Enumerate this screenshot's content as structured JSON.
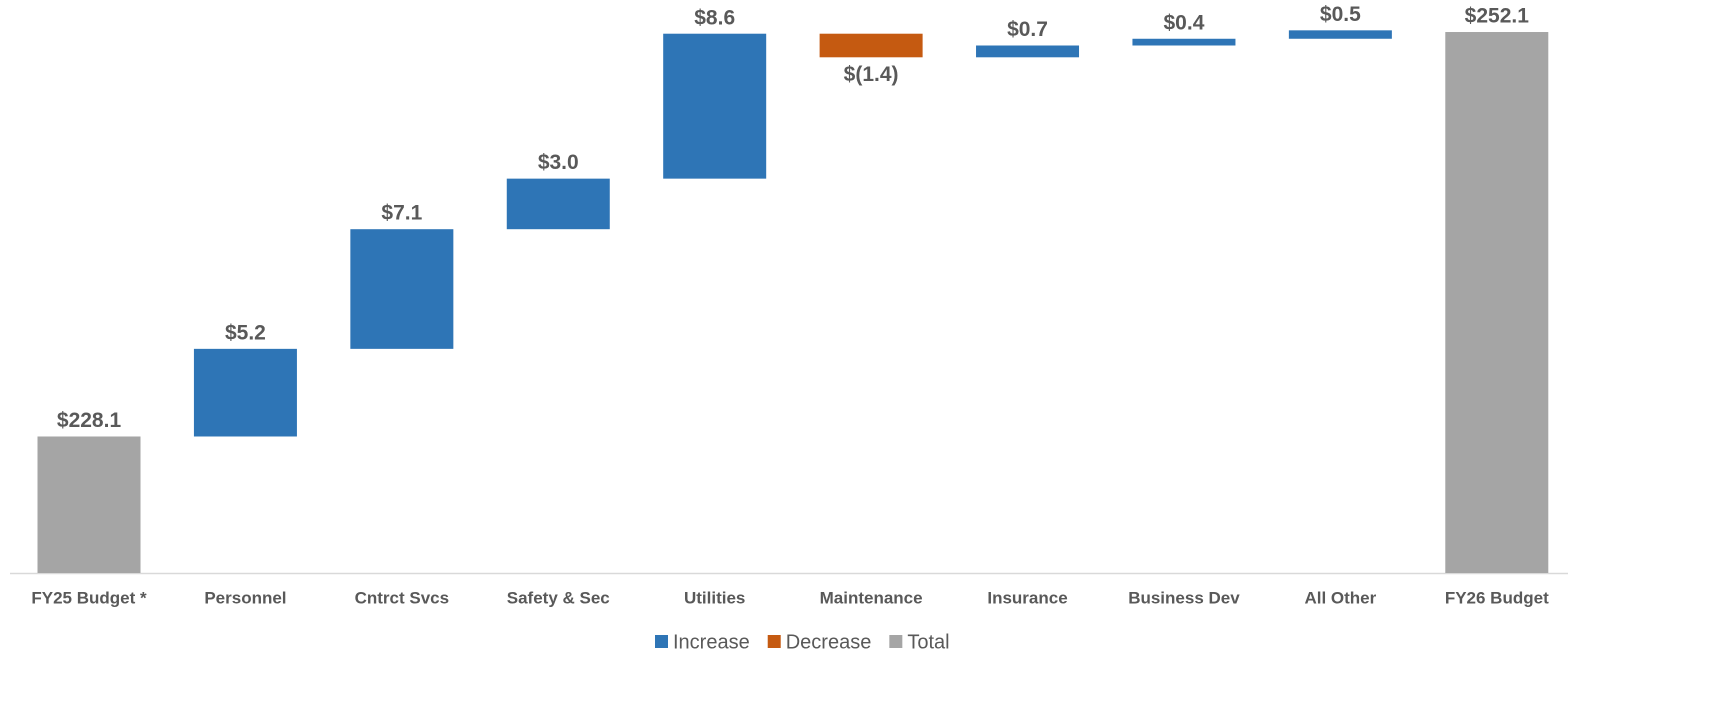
{
  "chart_data": {
    "type": "waterfall",
    "categories": [
      "FY25 Budget *",
      "Personnel",
      "Cntrct Svcs",
      "Safety & Sec",
      "Utilities",
      "Maintenance",
      "Insurance",
      "Business Dev",
      "All Other",
      "FY26 Budget"
    ],
    "values": [
      228.1,
      5.2,
      7.1,
      3.0,
      8.6,
      -1.4,
      0.7,
      0.4,
      0.5,
      252.1
    ],
    "value_labels": [
      "$228.1",
      "$5.2",
      "$7.1",
      "$3.0",
      "$8.6",
      "$(1.4)",
      "$0.7",
      "$0.4",
      "$0.5",
      "$252.1"
    ],
    "ylim": [
      220,
      254
    ],
    "legend": [
      {
        "name": "Increase",
        "color": "#2e75b6"
      },
      {
        "name": "Decrease",
        "color": "#c55a11"
      },
      {
        "name": "Total",
        "color": "#a5a5a5"
      }
    ]
  }
}
